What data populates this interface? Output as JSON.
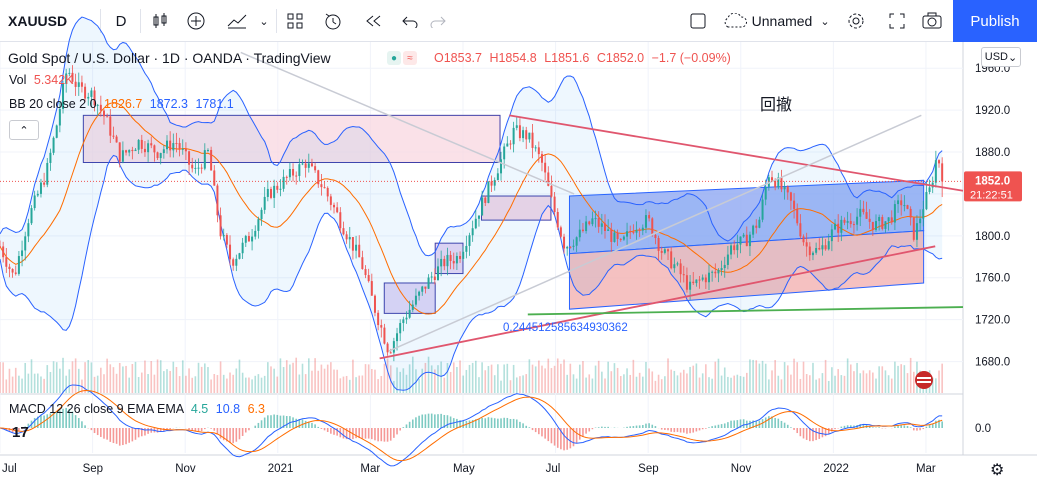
{
  "toolbar": {
    "symbol": "XAUUSD",
    "interval": "D",
    "layout_name": "Unnamed",
    "publish": "Publish",
    "icons": [
      "candles-icon",
      "add-indicator-icon",
      "indicators-icon",
      "chevron-down-icon",
      "layouts-icon",
      "alert-icon",
      "replay-icon",
      "undo-icon",
      "redo-icon",
      "fullscreen-square-icon",
      "cloud-icon",
      "settings-gear-icon",
      "fullscreen-icon",
      "camera-icon"
    ]
  },
  "legend": {
    "title": "Gold Spot / U.S. Dollar · 1D · OANDA · TradingView",
    "open": "O1853.7",
    "high": "H1854.8",
    "low": "L1851.6",
    "close": "C1852.0",
    "change": "−1.7 (−0.09%)",
    "vol_label": "Vol",
    "vol_value": "5.342K",
    "bb_label": "BB 20 close 2 0",
    "bb_basis": "1826.7",
    "bb_upper": "1872.3",
    "bb_lower": "1781.1",
    "macd_label": "MACD 12 26 close 9 EMA EMA",
    "macd_hist": "4.5",
    "macd_line": "10.8",
    "macd_signal": "6.3"
  },
  "annotations": {
    "pullback_label": "回撤",
    "fib_value": "0.244512585634930362"
  },
  "price_scale": {
    "currency": "USD",
    "last_price": "1852.0",
    "countdown": "21:22:51",
    "macd_zero": "0.0"
  },
  "colors": {
    "up": "#26a69a",
    "down": "#ef5350",
    "accent": "#2962ff",
    "bb_line": "#2962ff",
    "bb_basis": "#ff6d00",
    "trend": "#e0566e"
  },
  "chart_data": {
    "type": "candlestick",
    "title": "Gold Spot / U.S. Dollar · 1D · OANDA · TradingView",
    "ylim": [
      1650,
      1985
    ],
    "y_ticks": [
      1680,
      1720,
      1760,
      1800,
      1840,
      1880,
      1920,
      1960
    ],
    "y_tick_labels": [
      "1680.0",
      "1720.0",
      "1760.0",
      "1800.0",
      "1840.0",
      "1880.0",
      "1920.0",
      "1960.0"
    ],
    "x_tick_labels": [
      "Jul",
      "Sep",
      "Nov",
      "2021",
      "Mar",
      "May",
      "Jul",
      "Sep",
      "Nov",
      "2022",
      "Mar"
    ],
    "x_tick_months": [
      0,
      2,
      4,
      6,
      8,
      10,
      12,
      14,
      16,
      18,
      20
    ],
    "xlim_months": [
      0,
      20.8
    ],
    "last_close": 1852.0,
    "price_path": [
      [
        0.0,
        1790
      ],
      [
        0.3,
        1760
      ],
      [
        0.6,
        1815
      ],
      [
        1.0,
        1860
      ],
      [
        1.2,
        1900
      ],
      [
        1.45,
        1960
      ],
      [
        1.7,
        1940
      ],
      [
        2.0,
        1935
      ],
      [
        2.3,
        1910
      ],
      [
        2.6,
        1875
      ],
      [
        3.0,
        1890
      ],
      [
        3.4,
        1880
      ],
      [
        3.8,
        1890
      ],
      [
        4.2,
        1860
      ],
      [
        4.5,
        1880
      ],
      [
        4.75,
        1805
      ],
      [
        5.0,
        1775
      ],
      [
        5.4,
        1800
      ],
      [
        5.8,
        1840
      ],
      [
        6.2,
        1855
      ],
      [
        6.6,
        1870
      ],
      [
        7.0,
        1845
      ],
      [
        7.4,
        1810
      ],
      [
        7.8,
        1775
      ],
      [
        8.1,
        1730
      ],
      [
        8.4,
        1690
      ],
      [
        8.7,
        1720
      ],
      [
        9.0,
        1740
      ],
      [
        9.3,
        1760
      ],
      [
        9.6,
        1775
      ],
      [
        9.9,
        1780
      ],
      [
        10.2,
        1810
      ],
      [
        10.5,
        1840
      ],
      [
        10.8,
        1870
      ],
      [
        11.1,
        1900
      ],
      [
        11.4,
        1895
      ],
      [
        11.7,
        1870
      ],
      [
        11.9,
        1835
      ],
      [
        12.2,
        1790
      ],
      [
        12.5,
        1800
      ],
      [
        12.8,
        1815
      ],
      [
        13.1,
        1805
      ],
      [
        13.4,
        1790
      ],
      [
        13.7,
        1810
      ],
      [
        14.0,
        1815
      ],
      [
        14.3,
        1785
      ],
      [
        14.6,
        1770
      ],
      [
        14.9,
        1750
      ],
      [
        15.2,
        1760
      ],
      [
        15.5,
        1765
      ],
      [
        15.8,
        1790
      ],
      [
        16.1,
        1795
      ],
      [
        16.4,
        1815
      ],
      [
        16.6,
        1860
      ],
      [
        16.8,
        1850
      ],
      [
        17.1,
        1830
      ],
      [
        17.4,
        1790
      ],
      [
        17.7,
        1785
      ],
      [
        18.0,
        1805
      ],
      [
        18.3,
        1815
      ],
      [
        18.6,
        1820
      ],
      [
        18.9,
        1810
      ],
      [
        19.2,
        1815
      ],
      [
        19.5,
        1835
      ],
      [
        19.75,
        1800
      ],
      [
        19.95,
        1830
      ],
      [
        20.1,
        1845
      ],
      [
        20.25,
        1880
      ],
      [
        20.35,
        1852
      ]
    ],
    "rectangles": [
      {
        "x": [
          1.8,
          10.8
        ],
        "y": [
          1870,
          1915
        ],
        "fill": "#f8d7e0",
        "stroke": "#3f3fa8"
      },
      {
        "x": [
          10.4,
          11.9
        ],
        "y": [
          1815,
          1838
        ],
        "fill": "#f2c9dc",
        "stroke": "#3f3fa8"
      },
      {
        "x": [
          9.4,
          10.0
        ],
        "y": [
          1764,
          1793
        ],
        "fill": "#e3c9ee",
        "stroke": "#3f3fa8"
      },
      {
        "x": [
          8.3,
          9.4
        ],
        "y": [
          1726,
          1755
        ],
        "fill": "#d9c9f1",
        "stroke": "#3f3fa8"
      }
    ],
    "channels": [
      {
        "x": [
          12.3,
          19.95
        ],
        "y_top": [
          1838,
          1853
        ],
        "y_bottom": [
          1783,
          1805
        ],
        "fill": "#8fa7f2",
        "stroke": "#2962ff"
      },
      {
        "x": [
          12.3,
          19.95
        ],
        "y_top": [
          1783,
          1805
        ],
        "y_bottom": [
          1730,
          1755
        ],
        "fill": "#f3b1b1",
        "stroke": "#2962ff"
      }
    ],
    "trend_lines": [
      {
        "x": [
          11.0,
          20.8
        ],
        "y": [
          1915,
          1843
        ],
        "color": "#e0566e"
      },
      {
        "x": [
          8.2,
          20.2
        ],
        "y": [
          1683,
          1790
        ],
        "color": "#e0566e"
      },
      {
        "x": [
          11.4,
          20.8
        ],
        "y": [
          1725,
          1732
        ],
        "color": "#4caf50"
      }
    ],
    "volume": [
      3,
      5,
      4,
      6,
      5,
      4,
      7,
      5,
      4,
      6,
      5,
      8,
      5,
      4,
      6,
      5,
      7,
      6,
      5,
      4,
      6,
      7,
      5,
      4,
      5,
      6,
      5,
      4,
      5,
      6,
      5,
      4,
      6,
      5,
      7,
      5,
      4,
      6,
      5,
      4
    ],
    "macd_range": [
      -25,
      25
    ]
  }
}
